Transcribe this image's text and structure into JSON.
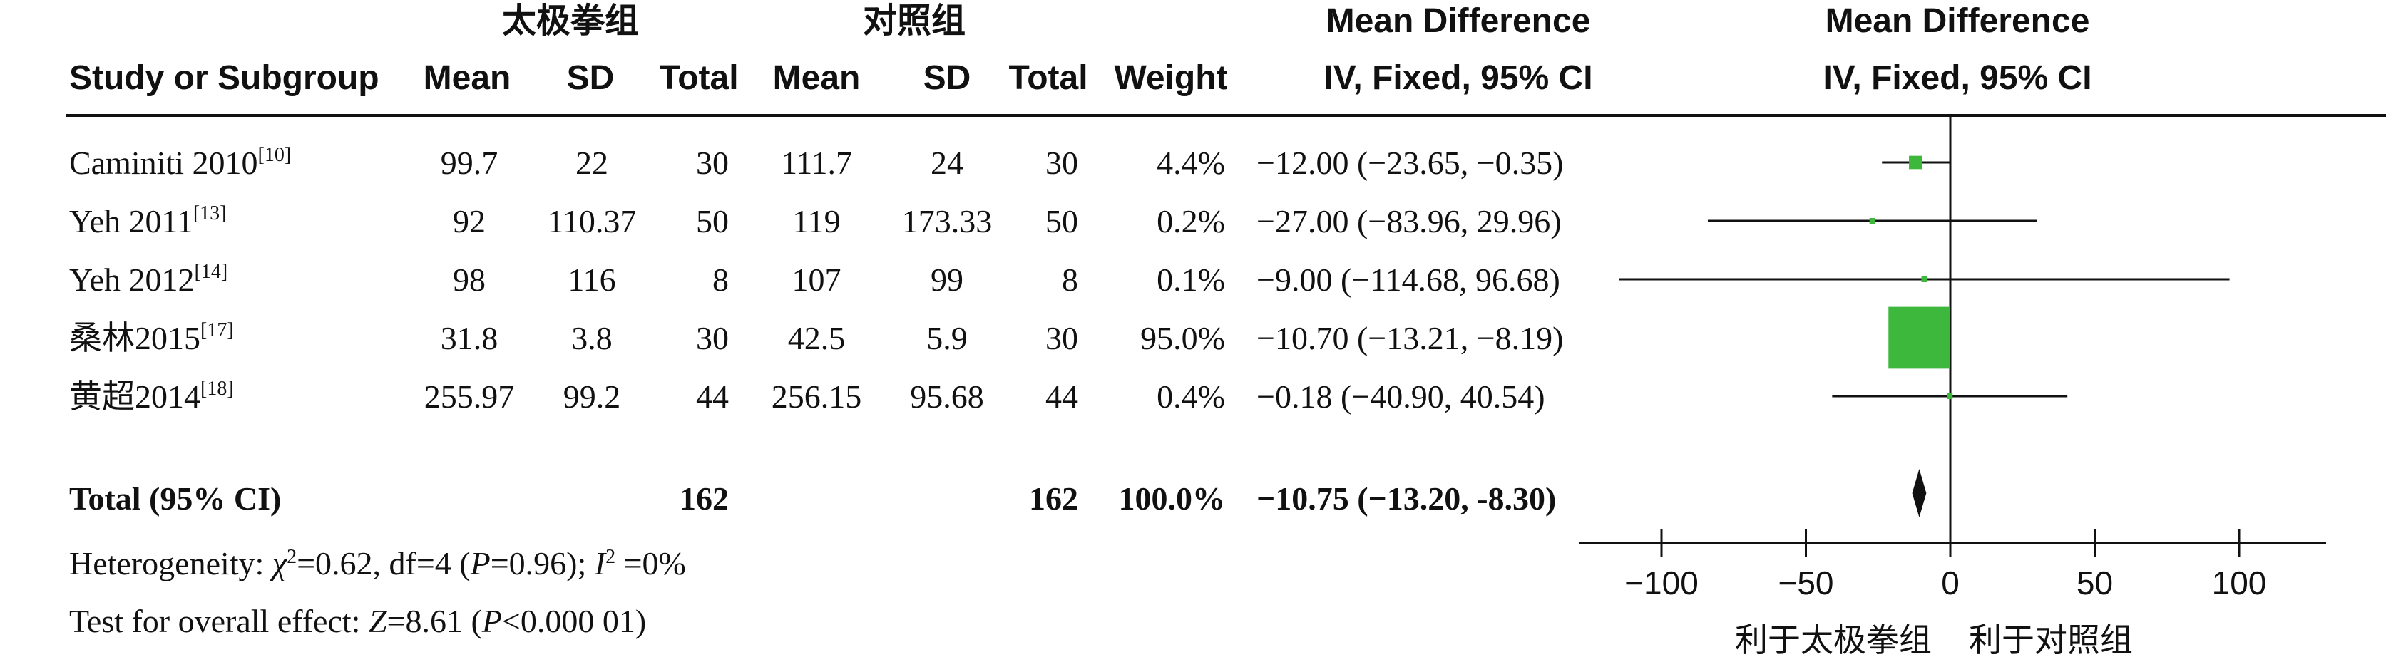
{
  "header": {
    "group1_label": "太极拳组",
    "group2_label": "对照组",
    "md_label_top": "Mean Difference",
    "md_label_bottom": "IV, Fixed, 95% CI",
    "plot_label_top": "Mean Difference",
    "plot_label_bottom": "IV, Fixed, 95% CI",
    "columns": {
      "study": "Study or Subgroup",
      "mean1": "Mean",
      "sd1": "SD",
      "total1": "Total",
      "mean2": "Mean",
      "sd2": "SD",
      "total2": "Total",
      "weight": "Weight"
    }
  },
  "chart_data": {
    "type": "forest",
    "xlim": [
      -100,
      100
    ],
    "xticks": [
      -100,
      -50,
      0,
      50,
      100
    ],
    "xtick_labels": [
      "−100",
      "−50",
      "0",
      "50",
      "100"
    ],
    "favours_left": "利于太极拳组",
    "favours_right": "利于对照组",
    "studies": [
      {
        "name": "Caminiti 2010",
        "ref": "[10]",
        "mean1": "99.7",
        "sd1": "22",
        "total1": "30",
        "mean2": "111.7",
        "sd2": "24",
        "total2": "30",
        "weight": "4.4%",
        "ci_text": "−12.00 (−23.65, −0.35)",
        "md": -12.0,
        "lo": -23.65,
        "hi": -0.35,
        "w": 4.4
      },
      {
        "name": "Yeh 2011",
        "ref": "[13]",
        "mean1": "92",
        "sd1": "110.37",
        "total1": "50",
        "mean2": "119",
        "sd2": "173.33",
        "total2": "50",
        "weight": "0.2%",
        "ci_text": "−27.00 (−83.96, 29.96)",
        "md": -27.0,
        "lo": -83.96,
        "hi": 29.96,
        "w": 0.2
      },
      {
        "name": "Yeh 2012",
        "ref": "[14]",
        "mean1": "98",
        "sd1": "116",
        "total1": "8",
        "mean2": "107",
        "sd2": "99",
        "total2": "8",
        "weight": "0.1%",
        "ci_text": "−9.00 (−114.68, 96.68)",
        "md": -9.0,
        "lo": -114.68,
        "hi": 96.68,
        "w": 0.1
      },
      {
        "name": "桑林2015",
        "ref": "[17]",
        "mean1": "31.8",
        "sd1": "3.8",
        "total1": "30",
        "mean2": "42.5",
        "sd2": "5.9",
        "total2": "30",
        "weight": "95.0%",
        "ci_text": "−10.70 (−13.21, −8.19)",
        "md": -10.7,
        "lo": -13.21,
        "hi": -8.19,
        "w": 95.0
      },
      {
        "name": "黄超2014",
        "ref": "[18]",
        "mean1": "255.97",
        "sd1": "99.2",
        "total1": "44",
        "mean2": "256.15",
        "sd2": "95.68",
        "total2": "44",
        "weight": "0.4%",
        "ci_text": "−0.18 (−40.90, 40.54)",
        "md": -0.18,
        "lo": -40.9,
        "hi": 40.54,
        "w": 0.4
      }
    ],
    "total": {
      "label": "Total (95% CI)",
      "total1": "162",
      "total2": "162",
      "weight": "100.0%",
      "ci_text": "−10.75 (−13.20, -8.30)",
      "md": -10.75,
      "lo": -13.2,
      "hi": -8.3
    },
    "heterogeneity": {
      "prefix": "Heterogeneity: ",
      "chi_sym": "χ",
      "chi_rest": "=0.62, df=4 (",
      "p_sym": "P",
      "p_rest": "=0.96); ",
      "i_sym": "I",
      "i_rest": " =0%"
    },
    "overall": {
      "prefix": "Test for overall effect: ",
      "z_sym": "Z",
      "z_rest": "=8.61 (",
      "p_sym": "P",
      "p_rest": "<0.000 01)"
    },
    "colors": {
      "marker": "#3db83d",
      "line": "#111111",
      "diamond": "#111111"
    }
  }
}
